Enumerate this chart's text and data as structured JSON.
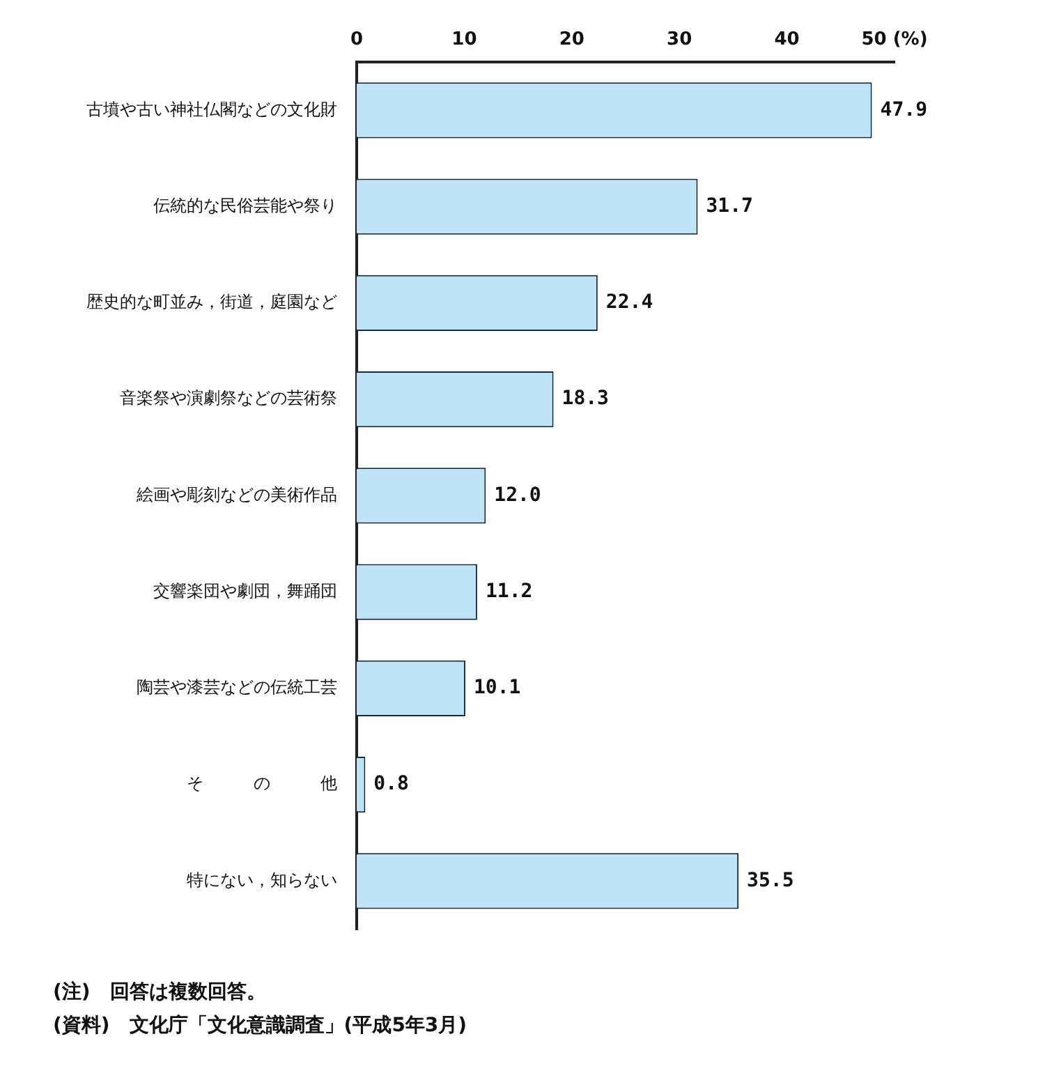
{
  "chart_data": {
    "type": "bar",
    "orientation": "horizontal",
    "categories": [
      "古墳や古い神社仏閣などの文化財",
      "伝統的な民俗芸能や祭り",
      "歴史的な町並み，街道，庭園など",
      "音楽祭や演劇祭などの芸術祭",
      "絵画や彫刻などの美術作品",
      "交響楽団や劇団，舞踊団",
      "陶芸や漆芸などの伝統工芸",
      "そ　　　の　　　他",
      "特にない，知らない"
    ],
    "values": [
      47.9,
      31.7,
      22.4,
      18.3,
      12.0,
      11.2,
      10.1,
      0.8,
      35.5
    ],
    "value_labels": [
      "47.9",
      "31.7",
      "22.4",
      "18.3",
      "12.0",
      "11.2",
      "10.1",
      "0.8",
      "35.5"
    ],
    "color": "#bfe3f7",
    "xlim": [
      0,
      50
    ],
    "xticks": [
      0,
      10,
      20,
      30,
      40,
      {
        "value": 50,
        "label": "50 (%)"
      }
    ],
    "grid": false,
    "legend": false,
    "annotations": [
      "(注)　回答は複数回答。",
      "(資料)　文化庁「文化意識調査」(平成5年3月)"
    ]
  }
}
